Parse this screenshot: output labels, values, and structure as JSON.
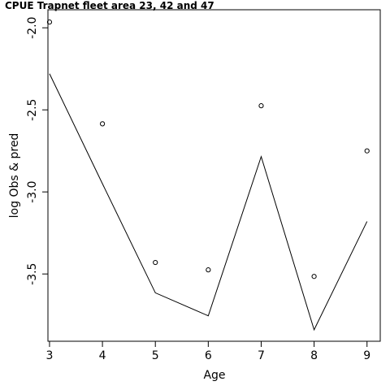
{
  "chart_data": {
    "type": "line",
    "title": "CPUE Trapnet fleet area 23, 42 and 47",
    "xlabel": "Age",
    "ylabel": "log Obs & pred",
    "x": [
      3,
      4,
      5,
      6,
      7,
      8,
      9
    ],
    "xlim": [
      2.97,
      9.25
    ],
    "ylim": [
      -3.91,
      -1.89
    ],
    "xticks": [
      "3",
      "4",
      "5",
      "6",
      "7",
      "8",
      "9"
    ],
    "yticks": [
      "-2.0",
      "-2.5",
      "-3.0",
      "-3.5"
    ],
    "series": [
      {
        "style": "points",
        "values": [
          -1.965,
          -2.585,
          -3.43,
          -3.475,
          -2.475,
          -3.515,
          -2.75
        ]
      },
      {
        "style": "line",
        "values": [
          -2.28,
          -2.95,
          -3.615,
          -3.755,
          -2.785,
          -3.84,
          -3.18
        ]
      }
    ],
    "grid": false,
    "legend": "none"
  }
}
